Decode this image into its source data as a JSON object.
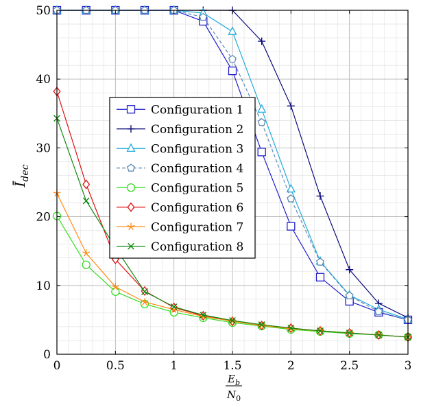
{
  "chart_data": {
    "type": "line",
    "title": "",
    "xlabel": {
      "num": "E",
      "num_sub": "b",
      "den": "N",
      "den_sub": "0"
    },
    "ylabel": {
      "main": "Ī",
      "sub": "dec"
    },
    "xlim": [
      0,
      3
    ],
    "ylim": [
      0,
      50
    ],
    "xticks": [
      0,
      0.5,
      1,
      1.5,
      2,
      2.5,
      3
    ],
    "xtick_labels": [
      "0",
      "0.5",
      "1",
      "1.5",
      "2",
      "2.5",
      "3"
    ],
    "yticks": [
      0,
      10,
      20,
      30,
      40,
      50
    ],
    "ytick_labels": [
      "0",
      "10",
      "20",
      "30",
      "40",
      "50"
    ],
    "grid": true,
    "legend_position": "center-left",
    "x": [
      0,
      0.25,
      0.5,
      0.75,
      1,
      1.25,
      1.5,
      1.75,
      2,
      2.25,
      2.5,
      2.75,
      3
    ],
    "series": [
      {
        "name": "Configuration 1",
        "color": "#1f1fcc",
        "marker": "square",
        "dashed": false,
        "values": [
          50,
          50,
          50,
          50,
          50,
          48.4,
          41.2,
          29.4,
          18.6,
          11.2,
          7.7,
          6.1,
          5.0
        ]
      },
      {
        "name": "Configuration 2",
        "color": "#0a0a7a",
        "marker": "plus",
        "dashed": false,
        "values": [
          50,
          50,
          50,
          50,
          50,
          50,
          50,
          45.5,
          36.1,
          23.0,
          12.3,
          7.4,
          5.3
        ]
      },
      {
        "name": "Configuration 3",
        "color": "#22aadd",
        "marker": "triangle",
        "dashed": false,
        "values": [
          50,
          50,
          50,
          50,
          50,
          49.6,
          46.9,
          35.6,
          24.0,
          13.5,
          8.6,
          6.5,
          5.1
        ]
      },
      {
        "name": "Configuration 4",
        "color": "#5a8ab0",
        "marker": "pentagon",
        "dashed": true,
        "values": [
          50,
          50,
          50,
          50,
          50,
          49.0,
          42.9,
          33.7,
          22.6,
          13.4,
          8.5,
          6.2,
          5.0
        ]
      },
      {
        "name": "Configuration 5",
        "color": "#33dd22",
        "marker": "circle",
        "dashed": false,
        "values": [
          20.1,
          13.0,
          9.1,
          7.3,
          6.1,
          5.3,
          4.6,
          4.1,
          3.6,
          3.3,
          3.0,
          2.8,
          2.5
        ]
      },
      {
        "name": "Configuration 6",
        "color": "#dd1111",
        "marker": "diamond",
        "dashed": false,
        "values": [
          38.2,
          24.7,
          13.8,
          9.2,
          6.8,
          5.6,
          4.8,
          4.2,
          3.8,
          3.4,
          3.1,
          2.8,
          2.5
        ]
      },
      {
        "name": "Configuration 7",
        "color": "#ff8811",
        "marker": "star",
        "dashed": false,
        "values": [
          23.4,
          14.7,
          9.8,
          7.6,
          6.5,
          5.5,
          4.8,
          4.2,
          3.7,
          3.4,
          3.1,
          2.8,
          2.5
        ]
      },
      {
        "name": "Configuration 8",
        "color": "#118811",
        "marker": "cross",
        "dashed": false,
        "values": [
          34.3,
          22.3,
          15.5,
          9.1,
          6.9,
          5.7,
          4.9,
          4.3,
          3.8,
          3.4,
          3.1,
          2.8,
          2.5
        ]
      }
    ]
  }
}
